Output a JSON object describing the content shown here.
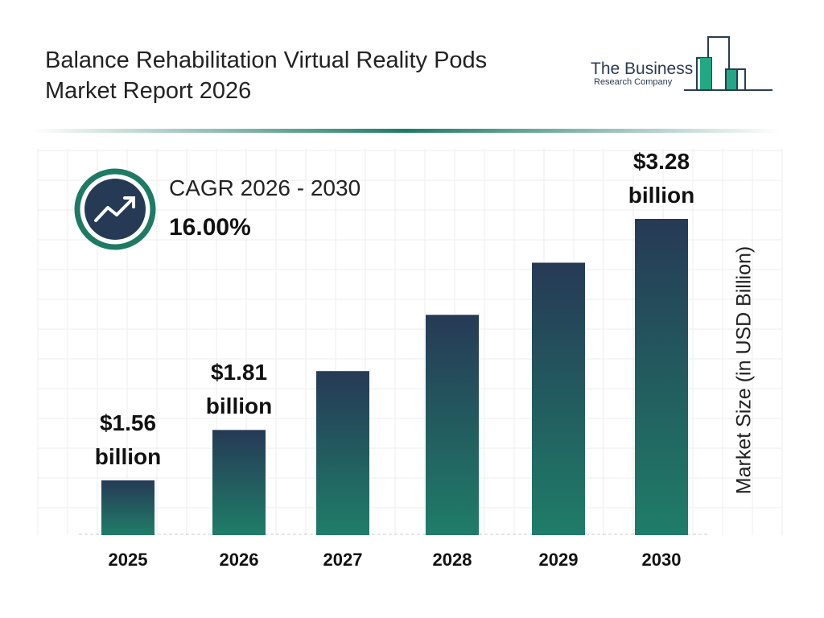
{
  "header": {
    "title_line1": "Balance Rehabilitation Virtual Reality Pods",
    "title_line2": "Market Report 2026"
  },
  "logo": {
    "line1": "The Business",
    "line2": "Research Company"
  },
  "cagr": {
    "label": "CAGR 2026 - 2030",
    "value": "16.00%",
    "icon": "trending-up-icon"
  },
  "colors": {
    "bar_top": "#263a56",
    "bar_bottom": "#1f7d68",
    "accent": "#1e7a64"
  },
  "chart_data": {
    "type": "bar",
    "categories": [
      "2025",
      "2026",
      "2027",
      "2028",
      "2029",
      "2030"
    ],
    "values": [
      1.56,
      1.81,
      2.1,
      2.44,
      2.83,
      3.28
    ],
    "data_labels": [
      {
        "amount": "$1.56",
        "unit": "billion"
      },
      {
        "amount": "$1.81",
        "unit": "billion"
      },
      null,
      null,
      null,
      {
        "amount": "$3.28",
        "unit": "billion"
      }
    ],
    "ylabel": "Market Size (in USD Billion)",
    "grid": true
  }
}
